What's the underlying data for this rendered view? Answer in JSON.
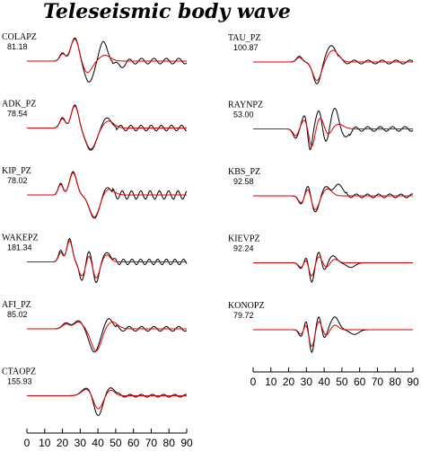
{
  "chart_data": {
    "type": "line",
    "title": "Teleseismic body wave",
    "x_ticks": [
      0,
      10,
      20,
      30,
      40,
      50,
      60,
      70,
      80,
      90
    ],
    "xlim": [
      0,
      90
    ],
    "colors": {
      "observed": "#000000",
      "synthetic": "#e00000"
    },
    "columns": [
      {
        "stations": [
          {
            "name": "COLAPZ",
            "distance": "81.18"
          },
          {
            "name": "ADK_PZ",
            "distance": "78.54"
          },
          {
            "name": "KIP_PZ",
            "distance": "78.02"
          },
          {
            "name": "WAKEPZ",
            "distance": "181.34"
          },
          {
            "name": "AFI_PZ",
            "distance": "85.02"
          },
          {
            "name": "CTAOPZ",
            "distance": "155.93"
          }
        ]
      },
      {
        "stations": [
          {
            "name": "TAU_PZ",
            "distance": "100.87"
          },
          {
            "name": "RAYNPZ",
            "distance": "53.00"
          },
          {
            "name": "KBS_PZ",
            "distance": "92.58"
          },
          {
            "name": "KIEVPZ",
            "distance": "92.24"
          },
          {
            "name": "KONOPZ",
            "distance": "79.72"
          }
        ]
      }
    ]
  }
}
